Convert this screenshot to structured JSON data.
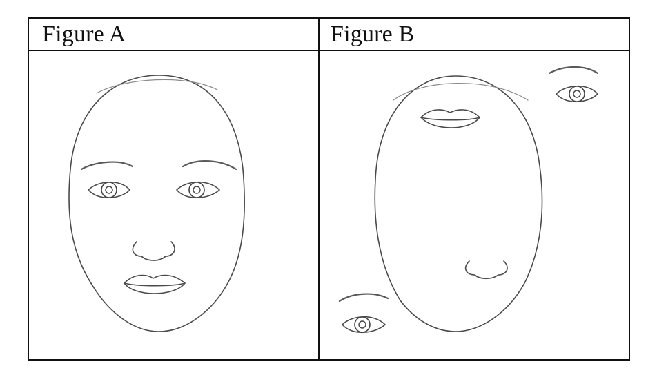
{
  "figures": [
    {
      "title": "Figure A"
    },
    {
      "title": "Figure B"
    }
  ],
  "colors": {
    "border": "#111111",
    "sketch": "#4a4a4a"
  }
}
